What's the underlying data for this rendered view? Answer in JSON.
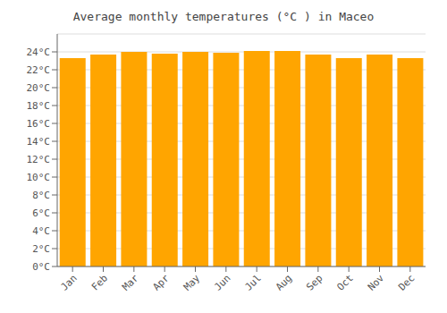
{
  "chart_data": {
    "type": "bar",
    "title": "Average monthly temperatures (°C ) in Maceo",
    "categories": [
      "Jan",
      "Feb",
      "Mar",
      "Apr",
      "May",
      "Jun",
      "Jul",
      "Aug",
      "Sep",
      "Oct",
      "Nov",
      "Dec"
    ],
    "values": [
      23.3,
      23.7,
      24.0,
      23.8,
      24.0,
      23.9,
      24.1,
      24.1,
      23.7,
      23.3,
      23.7,
      23.3
    ],
    "color": "#FFA500",
    "ylim": [
      0,
      26
    ],
    "yticks": [
      {
        "value": 0,
        "label": "0°C"
      },
      {
        "value": 2,
        "label": "2°C"
      },
      {
        "value": 4,
        "label": "4°C"
      },
      {
        "value": 6,
        "label": "6°C"
      },
      {
        "value": 8,
        "label": "8°C"
      },
      {
        "value": 10,
        "label": "10°C"
      },
      {
        "value": 12,
        "label": "12°C"
      },
      {
        "value": 14,
        "label": "14°C"
      },
      {
        "value": 16,
        "label": "16°C"
      },
      {
        "value": 18,
        "label": "18°C"
      },
      {
        "value": 20,
        "label": "20°C"
      },
      {
        "value": 22,
        "label": "22°C"
      },
      {
        "value": 24,
        "label": "24°C"
      }
    ],
    "grid": true
  }
}
